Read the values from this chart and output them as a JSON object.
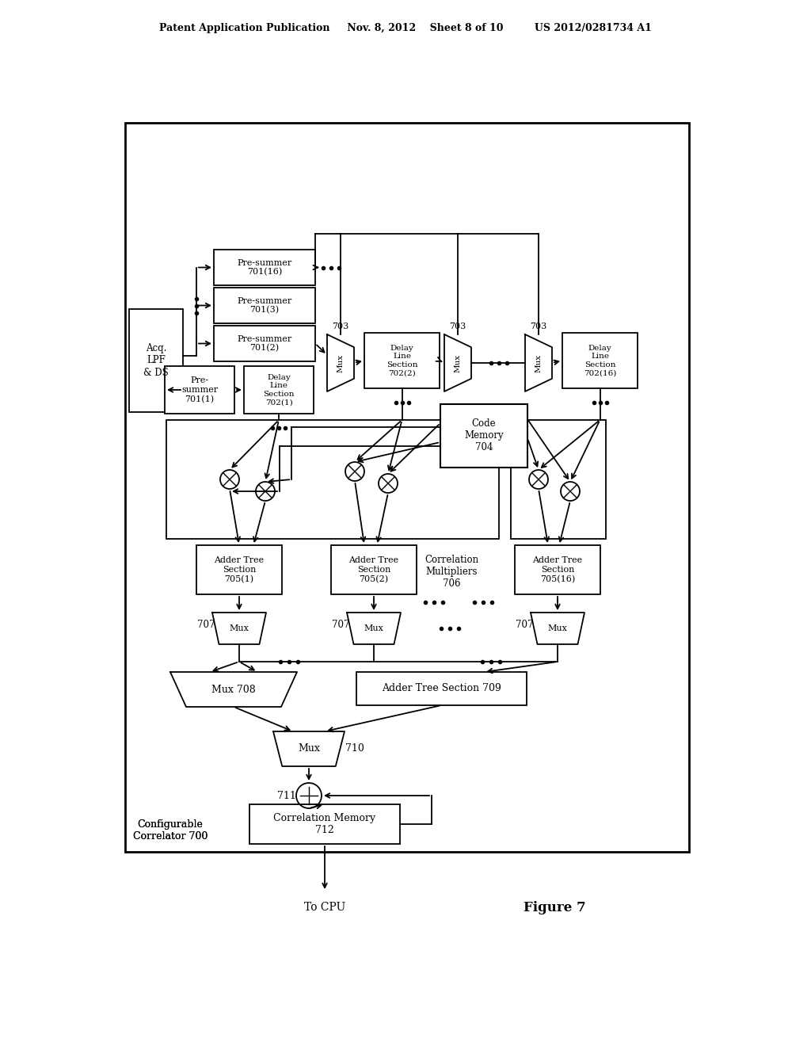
{
  "bg_color": "#ffffff",
  "line_color": "#000000",
  "header": "Patent Application Publication     Nov. 8, 2012    Sheet 8 of 10         US 2012/0281734 A1",
  "fig_label": "Figure 7",
  "to_cpu": "To CPU",
  "config_label": "Configurable\nCorrelator 700"
}
